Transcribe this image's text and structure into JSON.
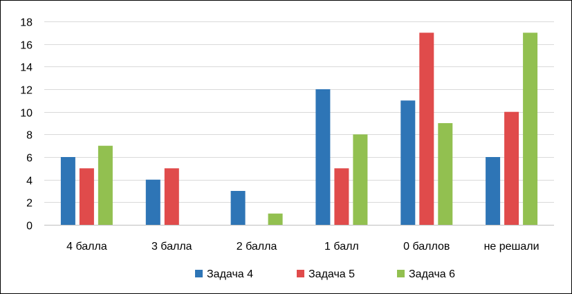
{
  "chart_data": {
    "type": "bar",
    "title": "",
    "xlabel": "",
    "ylabel": "",
    "ylim": [
      0,
      18
    ],
    "yticks": [
      0,
      2,
      4,
      6,
      8,
      10,
      12,
      14,
      16,
      18
    ],
    "grid": true,
    "legend_position": "bottom",
    "categories": [
      "4 балла",
      "3 балла",
      "2 балла",
      "1 балл",
      "0 баллов",
      "не решали"
    ],
    "series": [
      {
        "name": "Задача 4",
        "color": "#2E75B6",
        "values": [
          6,
          4,
          3,
          12,
          11,
          6
        ]
      },
      {
        "name": "Задача 5",
        "color": "#E04B4B",
        "values": [
          5,
          5,
          0,
          5,
          17,
          10
        ]
      },
      {
        "name": "Задача 6",
        "color": "#92C050",
        "values": [
          7,
          0,
          1,
          8,
          9,
          17
        ]
      }
    ]
  }
}
